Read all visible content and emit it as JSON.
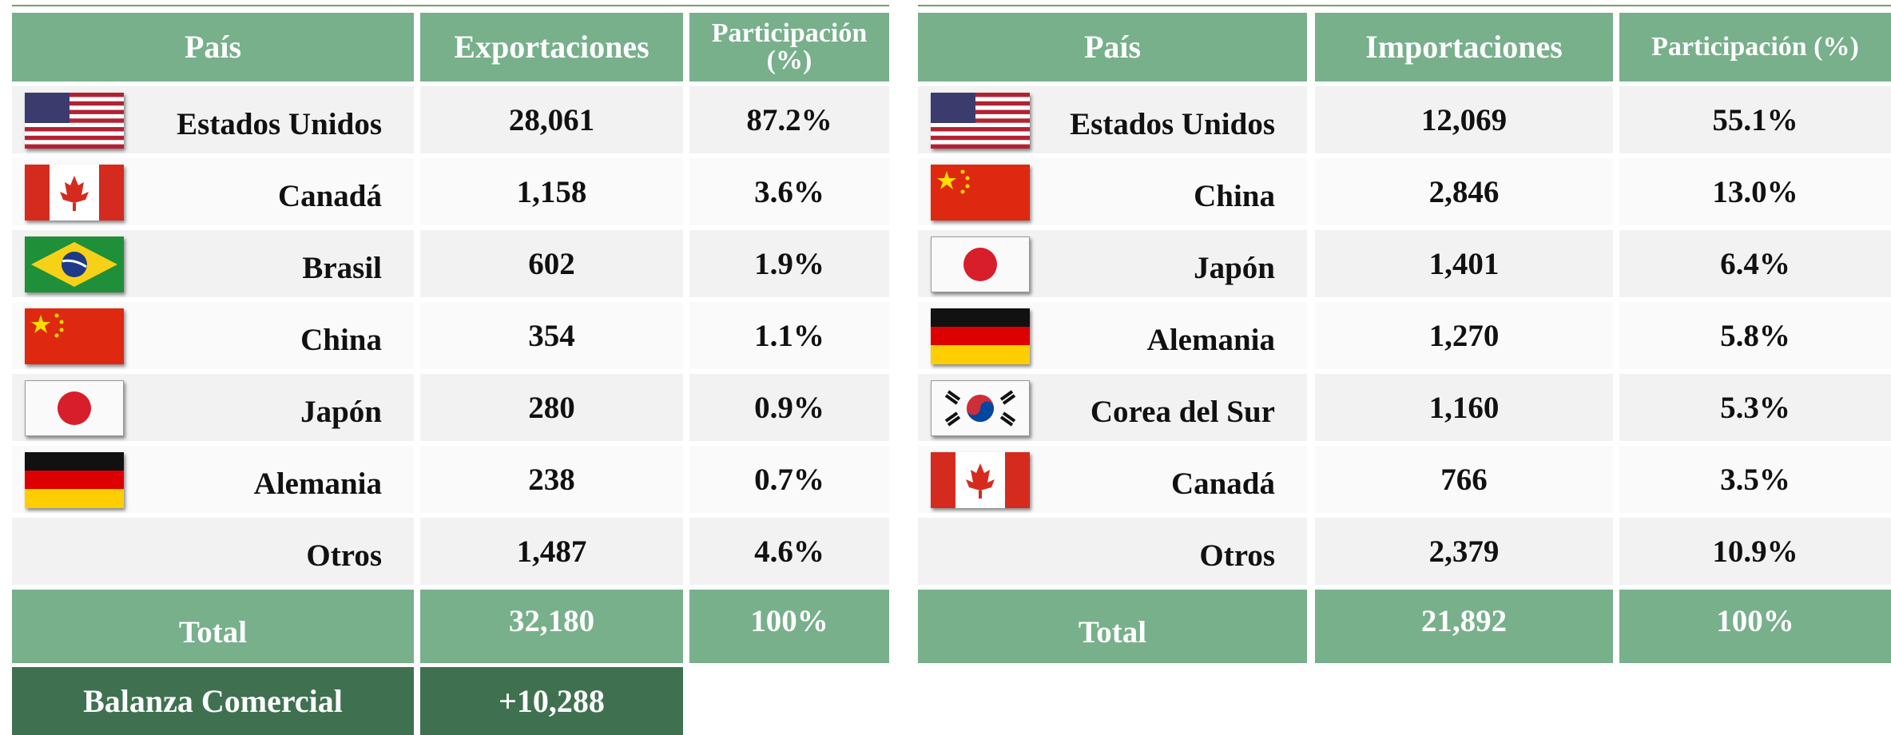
{
  "exports": {
    "headers": [
      "País",
      "Exportaciones",
      "Participación (%)"
    ],
    "rows": [
      [
        "Estados Unidos",
        "28,061",
        "87.2%"
      ],
      [
        "Canadá",
        "1,158",
        "3.6%"
      ],
      [
        "Brasil",
        "602",
        "1.9%"
      ],
      [
        "China",
        "354",
        "1.1%"
      ],
      [
        "Japón",
        "280",
        "0.9%"
      ],
      [
        "Alemania",
        "238",
        "0.7%"
      ],
      [
        "Otros",
        "1,487",
        "4.6%"
      ]
    ],
    "total": [
      "Total",
      "32,180",
      "100%"
    ]
  },
  "imports": {
    "headers": [
      "País",
      "Importaciones",
      "Participación (%)"
    ],
    "rows": [
      [
        "Estados Unidos",
        "12,069",
        "55.1%"
      ],
      [
        "China",
        "2,846",
        "13.0%"
      ],
      [
        "Japón",
        "1,401",
        "6.4%"
      ],
      [
        "Alemania",
        "1,270",
        "5.8%"
      ],
      [
        "Corea del Sur",
        "1,160",
        "5.3%"
      ],
      [
        "Canadá",
        "766",
        "3.5%"
      ],
      [
        "Otros",
        "2,379",
        "10.9%"
      ]
    ],
    "total": [
      "Total",
      "21,892",
      "100%"
    ]
  },
  "balance": [
    "Balanza Comercial",
    "+10,288"
  ]
}
